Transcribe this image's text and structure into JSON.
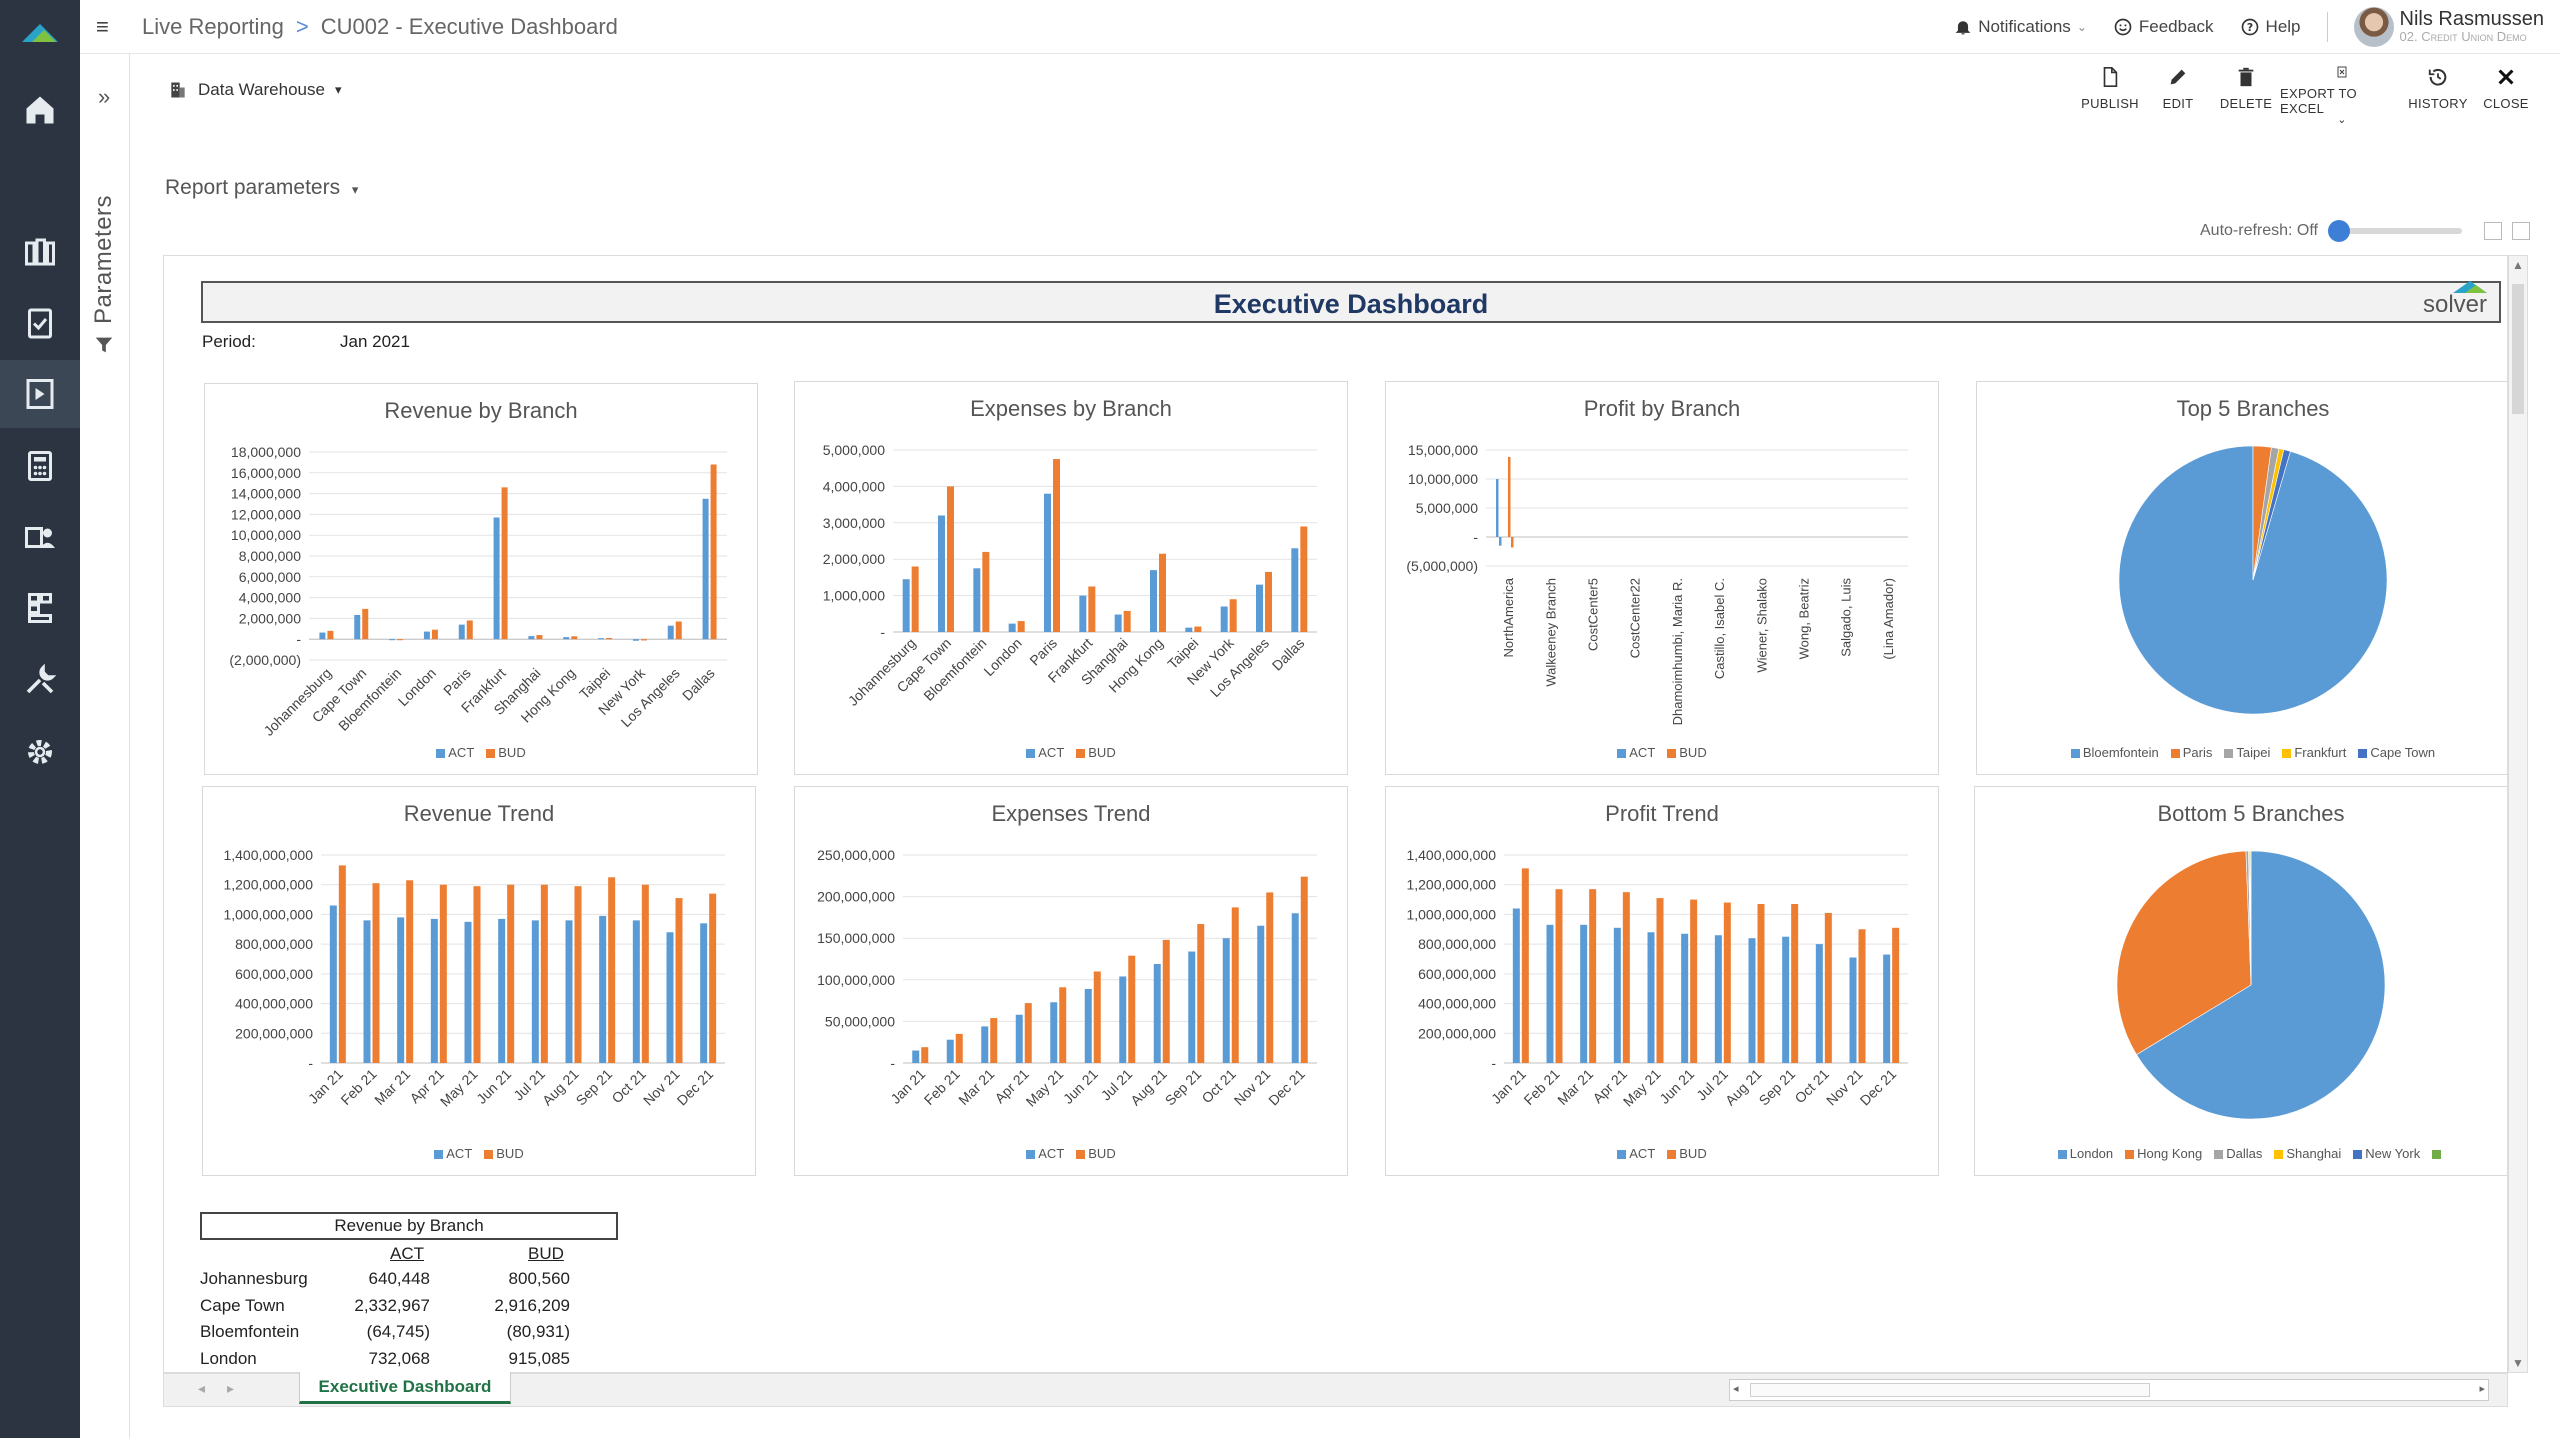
{
  "header": {
    "crumb1": "Live Reporting",
    "crumb_sep": ">",
    "crumb2": "CU002 - Executive Dashboard",
    "notifications": "Notifications",
    "feedback": "Feedback",
    "help": "Help",
    "user_name": "Nils Rasmussen",
    "user_org": "02. Credit Union Demo"
  },
  "params": {
    "label": "Parameters"
  },
  "toolbar": {
    "datasource": "Data Warehouse",
    "publish": "PUBLISH",
    "edit": "EDIT",
    "delete": "DELETE",
    "export": "EXPORT TO EXCEL",
    "history": "HISTORY",
    "close": "CLOSE"
  },
  "report_params": "Report parameters",
  "autorefresh": "Auto-refresh: Off",
  "dashboard": {
    "title": "Executive Dashboard",
    "logo_text": "solver",
    "period_label": "Period:",
    "period_value": "Jan 2021"
  },
  "colors": {
    "act": "#5b9bd5",
    "bud": "#ed7d31",
    "gray": "#a5a5a5",
    "yellow": "#ffc000",
    "blue2": "#4472c4",
    "green": "#70ad47"
  },
  "chart_data": [
    {
      "type": "bar",
      "title": "Revenue by Branch",
      "categories": [
        "Johannesburg",
        "Cape Town",
        "Bloemfontein",
        "London",
        "Paris",
        "Frankfurt",
        "Shanghai",
        "Hong Kong",
        "Taipei",
        "New York",
        "Los Angeles",
        "Dallas"
      ],
      "series": [
        {
          "name": "ACT",
          "values": [
            640448,
            2332967,
            -64745,
            732068,
            1400000,
            11700000,
            300000,
            200000,
            100000,
            -150000,
            1300000,
            13500000
          ]
        },
        {
          "name": "BUD",
          "values": [
            800560,
            2916209,
            -80931,
            915085,
            1800000,
            14600000,
            400000,
            280000,
            120000,
            -120000,
            1700000,
            16800000
          ]
        }
      ],
      "yticks": [
        "18,000,000",
        "16,000,000",
        "14,000,000",
        "12,000,000",
        "10,000,000",
        "8,000,000",
        "6,000,000",
        "4,000,000",
        "2,000,000",
        "-",
        "(2,000,000)"
      ],
      "ylim": [
        -2000000,
        18000000
      ]
    },
    {
      "type": "bar",
      "title": "Expenses by Branch",
      "categories": [
        "Johannesburg",
        "Cape Town",
        "Bloemfontein",
        "London",
        "Paris",
        "Frankfurt",
        "Shanghai",
        "Hong Kong",
        "Taipei",
        "New York",
        "Los Angeles",
        "Dallas"
      ],
      "series": [
        {
          "name": "ACT",
          "values": [
            1450000,
            3200000,
            1750000,
            230000,
            3800000,
            1000000,
            480000,
            1700000,
            120000,
            700000,
            1300000,
            2300000
          ]
        },
        {
          "name": "BUD",
          "values": [
            1800000,
            4000000,
            2200000,
            300000,
            4750000,
            1250000,
            580000,
            2150000,
            150000,
            900000,
            1650000,
            2900000
          ]
        }
      ],
      "yticks": [
        "5,000,000",
        "4,000,000",
        "3,000,000",
        "2,000,000",
        "1,000,000",
        "-"
      ],
      "ylim": [
        0,
        5000000
      ]
    },
    {
      "type": "bar",
      "title": "Profit by Branch",
      "categories": [
        "NorthAmerica",
        "Walkeeney Branch",
        "CostCenter5",
        "CostCenter22",
        "Dhamoimhumbi, Maria R.",
        "Castillo, Isabel C.",
        "Wiener, Shalako",
        "Wong, Beatriz",
        "Salgado, Luis",
        "(Lina Amador)"
      ],
      "series": [
        {
          "name": "ACT",
          "values": [
            10000000,
            -1500000,
            0,
            0,
            0,
            0,
            0,
            0,
            0,
            0
          ]
        },
        {
          "name": "BUD",
          "values": [
            13800000,
            -1800000,
            0,
            0,
            0,
            0,
            0,
            0,
            0,
            0
          ]
        }
      ],
      "yticks": [
        "15,000,000",
        "10,000,000",
        "5,000,000",
        "-",
        "(5,000,000)"
      ],
      "ylim": [
        -5000000,
        15000000
      ]
    },
    {
      "type": "pie",
      "title": "Top 5 Branches",
      "labels": [
        "Bloemfontein",
        "Paris",
        "Taipei",
        "Frankfurt",
        "Cape Town"
      ],
      "values": [
        95.5,
        2.2,
        0.9,
        0.6,
        0.8
      ]
    },
    {
      "type": "bar",
      "title": "Revenue Trend",
      "categories": [
        "Jan 21",
        "Feb 21",
        "Mar 21",
        "Apr 21",
        "May 21",
        "Jun 21",
        "Jul 21",
        "Aug 21",
        "Sep 21",
        "Oct 21",
        "Nov 21",
        "Dec 21"
      ],
      "series": [
        {
          "name": "ACT",
          "values": [
            1060000000,
            960000000,
            980000000,
            970000000,
            950000000,
            970000000,
            960000000,
            960000000,
            990000000,
            960000000,
            880000000,
            940000000
          ]
        },
        {
          "name": "BUD",
          "values": [
            1330000000,
            1210000000,
            1230000000,
            1200000000,
            1190000000,
            1200000000,
            1200000000,
            1190000000,
            1250000000,
            1200000000,
            1110000000,
            1140000000
          ]
        }
      ],
      "yticks": [
        "1,400,000,000",
        "1,200,000,000",
        "1,000,000,000",
        "800,000,000",
        "600,000,000",
        "400,000,000",
        "200,000,000",
        "-"
      ],
      "ylim": [
        0,
        1400000000
      ]
    },
    {
      "type": "bar",
      "title": "Expenses Trend",
      "categories": [
        "Jan 21",
        "Feb 21",
        "Mar 21",
        "Apr 21",
        "May 21",
        "Jun 21",
        "Jul 21",
        "Aug 21",
        "Sep 21",
        "Oct 21",
        "Nov 21",
        "Dec 21"
      ],
      "series": [
        {
          "name": "ACT",
          "values": [
            15000000,
            28000000,
            44000000,
            58000000,
            73000000,
            89000000,
            104000000,
            119000000,
            134000000,
            150000000,
            165000000,
            180000000
          ]
        },
        {
          "name": "BUD",
          "values": [
            19000000,
            35000000,
            54000000,
            72000000,
            91000000,
            110000000,
            129000000,
            148000000,
            167000000,
            187000000,
            205000000,
            224000000
          ]
        }
      ],
      "yticks": [
        "250,000,000",
        "200,000,000",
        "150,000,000",
        "100,000,000",
        "50,000,000",
        "-"
      ],
      "ylim": [
        0,
        250000000
      ]
    },
    {
      "type": "bar",
      "title": "Profit Trend",
      "categories": [
        "Jan 21",
        "Feb 21",
        "Mar 21",
        "Apr 21",
        "May 21",
        "Jun 21",
        "Jul 21",
        "Aug 21",
        "Sep 21",
        "Oct 21",
        "Nov 21",
        "Dec 21"
      ],
      "series": [
        {
          "name": "ACT",
          "values": [
            1040000000,
            930000000,
            930000000,
            910000000,
            880000000,
            870000000,
            860000000,
            840000000,
            850000000,
            800000000,
            710000000,
            730000000
          ]
        },
        {
          "name": "BUD",
          "values": [
            1310000000,
            1170000000,
            1170000000,
            1150000000,
            1110000000,
            1100000000,
            1080000000,
            1070000000,
            1070000000,
            1010000000,
            900000000,
            910000000
          ]
        }
      ],
      "yticks": [
        "1,400,000,000",
        "1,200,000,000",
        "1,000,000,000",
        "800,000,000",
        "600,000,000",
        "400,000,000",
        "200,000,000",
        "-"
      ],
      "ylim": [
        0,
        1400000000
      ]
    },
    {
      "type": "pie",
      "title": "Bottom 5 Branches",
      "labels": [
        "London",
        "Hong Kong",
        "Dallas",
        "Shanghai",
        "New York",
        ""
      ],
      "values": [
        66.3,
        33.1,
        0.3,
        0.1,
        0.1,
        0.1
      ]
    }
  ],
  "table": {
    "title": "Revenue by Branch",
    "col_act": "ACT",
    "col_bud": "BUD",
    "rows": [
      {
        "name": "Johannesburg",
        "act": "640,448",
        "bud": "800,560"
      },
      {
        "name": "Cape Town",
        "act": "2,332,967",
        "bud": "2,916,209"
      },
      {
        "name": "Bloemfontein",
        "act": "(64,745)",
        "bud": "(80,931)"
      },
      {
        "name": "London",
        "act": "732,068",
        "bud": "915,085"
      }
    ]
  },
  "sheet_tab": "Executive Dashboard"
}
